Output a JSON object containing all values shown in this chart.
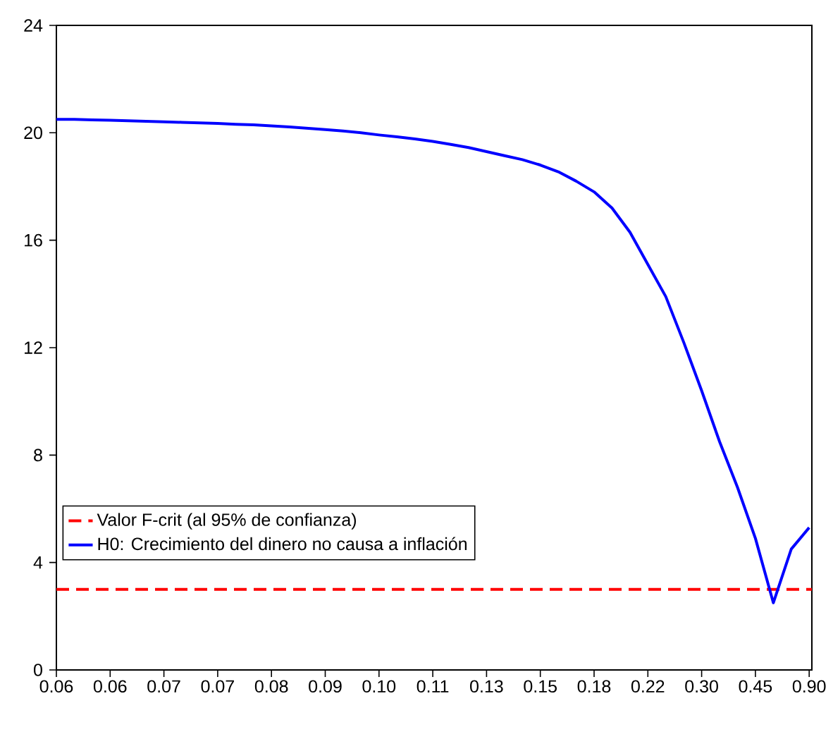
{
  "chart_data": {
    "type": "line",
    "categories": [
      "0.06",
      null,
      null,
      "0.06",
      null,
      null,
      "0.07",
      null,
      null,
      "0.07",
      null,
      null,
      "0.08",
      null,
      null,
      "0.09",
      null,
      null,
      "0.10",
      null,
      null,
      "0.11",
      null,
      null,
      "0.13",
      null,
      null,
      "0.15",
      null,
      null,
      "0.18",
      null,
      null,
      "0.22",
      null,
      null,
      "0.30",
      null,
      null,
      "0.45",
      null,
      null,
      "0.90"
    ],
    "series": [
      {
        "name": "H0: Crecimiento del dinero no causa a inflación",
        "color": "#0000ff",
        "values": [
          20.5,
          20.5,
          20.48,
          20.47,
          20.45,
          20.43,
          20.41,
          20.39,
          20.37,
          20.35,
          20.32,
          20.3,
          20.26,
          20.22,
          20.17,
          20.12,
          20.07,
          20.0,
          19.92,
          19.85,
          19.77,
          19.68,
          19.57,
          19.45,
          19.3,
          19.15,
          19.0,
          18.8,
          18.55,
          18.2,
          17.8,
          17.2,
          16.3,
          15.1,
          13.9,
          12.2,
          10.4,
          8.5,
          6.8,
          4.9,
          2.5,
          4.5,
          5.3
        ]
      }
    ],
    "ref_lines": [
      {
        "axis": "y",
        "value": 3,
        "label": "Valor F-crit (al 95% de confianza)",
        "color": "#ff0000",
        "line_style": "dashed"
      }
    ],
    "ylim": [
      0,
      24
    ],
    "yticks": [
      0,
      4,
      8,
      12,
      16,
      20,
      24
    ],
    "grid": false,
    "legend": "bottom left",
    "marker": "none",
    "line_style": "solid"
  }
}
